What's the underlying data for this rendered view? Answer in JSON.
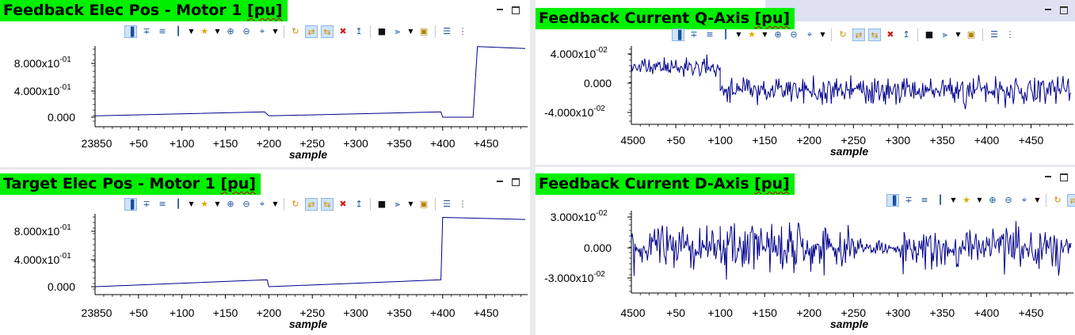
{
  "panels": [
    {
      "title": "Feedback Elec Pos - Motor 1 ",
      "title_unit": "[pu]",
      "xlabel": "sample",
      "x_origin_label": "23850",
      "y_ticks": [
        "0.000",
        "4.000x10",
        "8.000x10"
      ],
      "y_tick_exp": [
        "",
        "-01",
        "-01"
      ]
    },
    {
      "title": "Feedback Current Q-Axis ",
      "title_unit": "[pu]",
      "xlabel": "sample",
      "x_origin_label": "4500",
      "y_ticks": [
        "-4.000x10",
        "0.000",
        "4.000x10"
      ],
      "y_tick_exp": [
        "-02",
        "",
        "-02"
      ]
    },
    {
      "title": "Target Elec Pos - Motor 1 ",
      "title_unit": "[pu]",
      "xlabel": "sample",
      "x_origin_label": "23850",
      "y_ticks": [
        "0.000",
        "4.000x10",
        "8.000x10"
      ],
      "y_tick_exp": [
        "",
        "-01",
        "-01"
      ]
    },
    {
      "title": "Feedback Current D-Axis ",
      "title_unit": "[pu]",
      "xlabel": "sample",
      "x_origin_label": "4500",
      "y_ticks": [
        "-3.000x10",
        "0.000",
        "3.000x10"
      ],
      "y_tick_exp": [
        "-02",
        "",
        "-02"
      ]
    }
  ],
  "x_offset_labels": [
    "+50",
    "+100",
    "+150",
    "+200",
    "+250",
    "+300",
    "+350",
    "+400",
    "+450"
  ],
  "toolbar_icons": [
    "align-icon",
    "cursor-icon",
    "measure-icon",
    "marker-icon",
    "star-icon",
    "zoom-in-icon",
    "zoom-out-icon",
    "zoom-fit-icon",
    "refresh-icon",
    "sync-icon",
    "sync-all-icon",
    "delete-icon",
    "export-icon",
    "binoculars-icon",
    "filter-icon",
    "lock-icon",
    "properties-icon",
    "more-icon"
  ],
  "chart_data": [
    {
      "type": "line",
      "x_range": [
        0,
        495
      ],
      "ylim": [
        -0.04,
        1.1
      ],
      "series": [
        {
          "values": [
            [
              0,
              0.02
            ],
            [
              195,
              0.08
            ],
            [
              200,
              0.02
            ],
            [
              398,
              0.08
            ],
            [
              400,
              0.0
            ],
            [
              435,
              0.0
            ],
            [
              440,
              1.05
            ],
            [
              495,
              1.02
            ]
          ]
        }
      ],
      "grid": false
    },
    {
      "type": "line",
      "x_range": [
        0,
        495
      ],
      "ylim": [
        -0.055,
        0.055
      ],
      "description_of_signal": null,
      "series": [
        {
          "noise": {
            "seed": 11,
            "segments": [
              [
                0,
                100,
                0.022,
                0.006
              ],
              [
                100,
                495,
                -0.01,
                0.009
              ]
            ]
          }
        }
      ],
      "grid": false
    },
    {
      "type": "line",
      "x_range": [
        0,
        495
      ],
      "ylim": [
        -0.04,
        1.1
      ],
      "series": [
        {
          "values": [
            [
              0,
              0.0
            ],
            [
              198,
              0.1
            ],
            [
              200,
              0.0
            ],
            [
              398,
              0.1
            ],
            [
              400,
              1.0
            ],
            [
              495,
              0.97
            ]
          ]
        }
      ],
      "grid": false
    },
    {
      "type": "line",
      "x_range": [
        0,
        495
      ],
      "ylim": [
        -0.045,
        0.045
      ],
      "series": [
        {
          "noise": {
            "seed": 29,
            "segments": [
              [
                0,
                100,
                0.0,
                0.011
              ],
              [
                100,
                250,
                0.0,
                0.012
              ],
              [
                250,
                300,
                0.0,
                0.004
              ],
              [
                300,
                495,
                0.0,
                0.01
              ]
            ]
          }
        }
      ],
      "grid": false
    }
  ]
}
